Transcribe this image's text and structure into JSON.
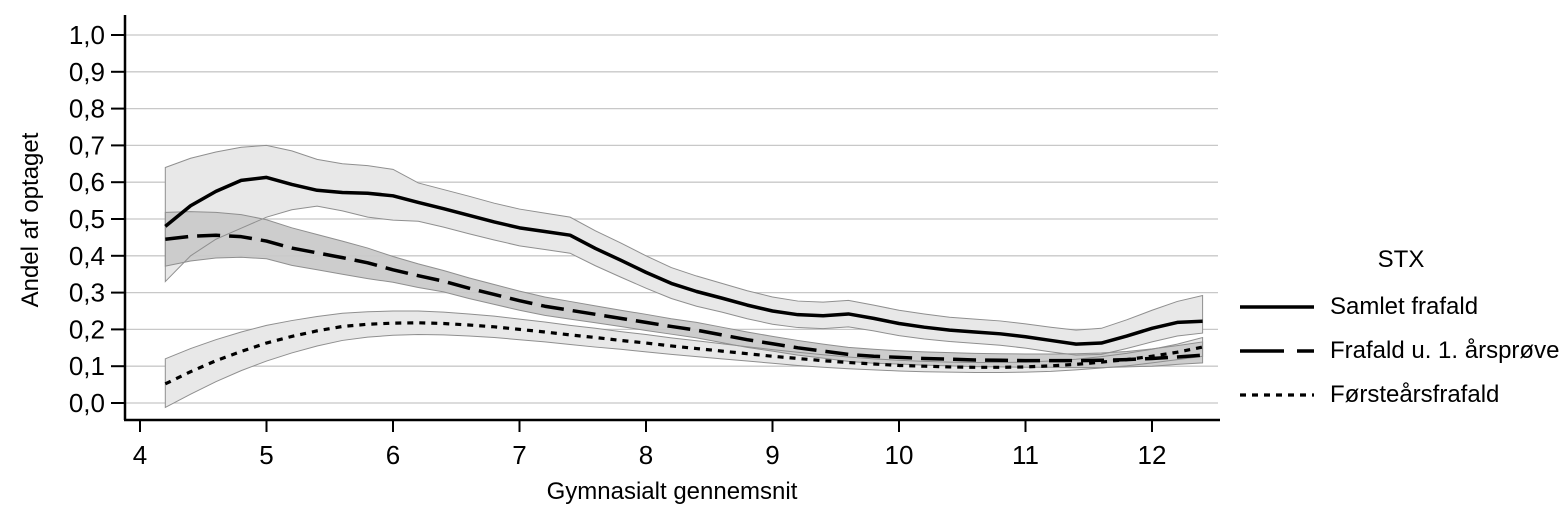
{
  "figure": {
    "background": "#ffffff",
    "text_color": "#000000"
  },
  "chart_data": {
    "type": "line",
    "title": "",
    "xlabel": "Gymnasialt gennemsnit",
    "ylabel": "Andel af optaget",
    "legend_title": "STX",
    "legend_position": "right",
    "grid": "horizontal",
    "grid_color": "#c8c8c8",
    "axis_color": "#000000",
    "xlim": [
      3.9,
      12.55
    ],
    "ylim": [
      -0.05,
      1.05
    ],
    "xticks": [
      4,
      5,
      6,
      7,
      8,
      9,
      10,
      11,
      12
    ],
    "ytick_values": [
      0.0,
      0.1,
      0.2,
      0.3,
      0.4,
      0.5,
      0.6,
      0.7,
      0.8,
      0.9,
      1.0
    ],
    "ytick_labels": [
      "0,0",
      "0,1",
      "0,2",
      "0,3",
      "0,4",
      "0,5",
      "0,6",
      "0,7",
      "0,8",
      "0,9",
      "1,0"
    ],
    "x": [
      4.2,
      4.4,
      4.6,
      4.8,
      5.0,
      5.2,
      5.4,
      5.6,
      5.8,
      6.0,
      6.2,
      6.4,
      6.6,
      6.8,
      7.0,
      7.2,
      7.4,
      7.6,
      7.8,
      8.0,
      8.2,
      8.4,
      8.6,
      8.8,
      9.0,
      9.2,
      9.4,
      9.6,
      9.8,
      10.0,
      10.2,
      10.4,
      10.6,
      10.8,
      11.0,
      11.2,
      11.4,
      11.6,
      11.8,
      12.0,
      12.2,
      12.4
    ],
    "series": [
      {
        "name": "Samlet frafald",
        "line_style": "solid",
        "color": "#000000",
        "band_fill": "#e8e8e8",
        "band_stroke": "#8f8f8f",
        "values": [
          0.48,
          0.536,
          0.575,
          0.605,
          0.613,
          0.594,
          0.578,
          0.572,
          0.57,
          0.563,
          0.545,
          0.528,
          0.51,
          0.492,
          0.476,
          0.466,
          0.456,
          0.42,
          0.388,
          0.355,
          0.325,
          0.303,
          0.285,
          0.266,
          0.25,
          0.24,
          0.237,
          0.242,
          0.23,
          0.216,
          0.206,
          0.198,
          0.193,
          0.188,
          0.18,
          0.17,
          0.16,
          0.163,
          0.182,
          0.203,
          0.219,
          0.222
        ],
        "ci_upper": [
          0.64,
          0.665,
          0.682,
          0.695,
          0.7,
          0.685,
          0.662,
          0.65,
          0.645,
          0.635,
          0.598,
          0.58,
          0.562,
          0.543,
          0.527,
          0.516,
          0.505,
          0.468,
          0.435,
          0.4,
          0.368,
          0.345,
          0.325,
          0.305,
          0.288,
          0.277,
          0.274,
          0.279,
          0.266,
          0.252,
          0.242,
          0.233,
          0.228,
          0.223,
          0.215,
          0.206,
          0.198,
          0.203,
          0.226,
          0.252,
          0.276,
          0.292
        ],
        "ci_lower": [
          0.33,
          0.4,
          0.445,
          0.475,
          0.505,
          0.525,
          0.535,
          0.522,
          0.505,
          0.497,
          0.494,
          0.478,
          0.46,
          0.443,
          0.427,
          0.417,
          0.407,
          0.373,
          0.342,
          0.312,
          0.284,
          0.263,
          0.247,
          0.229,
          0.214,
          0.205,
          0.202,
          0.207,
          0.196,
          0.183,
          0.174,
          0.167,
          0.162,
          0.157,
          0.149,
          0.139,
          0.13,
          0.132,
          0.148,
          0.166,
          0.182,
          0.19
        ]
      },
      {
        "name": "Frafald u. 1. årsprøve",
        "line_style": "long-dash",
        "color": "#000000",
        "band_fill": "#c9c9c9",
        "band_stroke": "#8f8f8f",
        "values": [
          0.445,
          0.453,
          0.456,
          0.452,
          0.44,
          0.421,
          0.408,
          0.395,
          0.381,
          0.362,
          0.346,
          0.331,
          0.312,
          0.295,
          0.278,
          0.263,
          0.252,
          0.241,
          0.23,
          0.219,
          0.208,
          0.198,
          0.185,
          0.172,
          0.161,
          0.15,
          0.141,
          0.132,
          0.127,
          0.124,
          0.121,
          0.119,
          0.117,
          0.116,
          0.115,
          0.115,
          0.115,
          0.116,
          0.118,
          0.121,
          0.125,
          0.13
        ],
        "ci_upper": [
          0.518,
          0.52,
          0.518,
          0.512,
          0.498,
          0.476,
          0.458,
          0.44,
          0.421,
          0.398,
          0.378,
          0.36,
          0.34,
          0.322,
          0.304,
          0.288,
          0.276,
          0.264,
          0.252,
          0.241,
          0.229,
          0.219,
          0.206,
          0.193,
          0.181,
          0.17,
          0.16,
          0.151,
          0.146,
          0.142,
          0.139,
          0.137,
          0.135,
          0.134,
          0.133,
          0.133,
          0.134,
          0.136,
          0.14,
          0.147,
          0.156,
          0.166
        ],
        "ci_lower": [
          0.372,
          0.386,
          0.394,
          0.396,
          0.392,
          0.374,
          0.362,
          0.35,
          0.338,
          0.328,
          0.314,
          0.302,
          0.284,
          0.268,
          0.252,
          0.238,
          0.228,
          0.218,
          0.208,
          0.197,
          0.187,
          0.177,
          0.164,
          0.151,
          0.141,
          0.13,
          0.122,
          0.113,
          0.108,
          0.106,
          0.103,
          0.101,
          0.099,
          0.098,
          0.097,
          0.097,
          0.096,
          0.096,
          0.098,
          0.1,
          0.105,
          0.109
        ]
      },
      {
        "name": "Førsteårsfrafald",
        "line_style": "short-dash",
        "color": "#000000",
        "band_fill": "#e8e8e8",
        "band_stroke": "#8f8f8f",
        "values": [
          0.052,
          0.085,
          0.115,
          0.14,
          0.163,
          0.181,
          0.196,
          0.208,
          0.214,
          0.217,
          0.218,
          0.216,
          0.212,
          0.207,
          0.2,
          0.193,
          0.185,
          0.178,
          0.17,
          0.163,
          0.155,
          0.148,
          0.141,
          0.134,
          0.127,
          0.121,
          0.115,
          0.11,
          0.106,
          0.102,
          0.1,
          0.098,
          0.097,
          0.097,
          0.098,
          0.101,
          0.105,
          0.111,
          0.118,
          0.127,
          0.138,
          0.152
        ],
        "ci_upper": [
          0.12,
          0.148,
          0.172,
          0.193,
          0.211,
          0.224,
          0.235,
          0.244,
          0.248,
          0.25,
          0.25,
          0.247,
          0.242,
          0.236,
          0.228,
          0.22,
          0.211,
          0.203,
          0.194,
          0.186,
          0.177,
          0.169,
          0.161,
          0.153,
          0.145,
          0.138,
          0.131,
          0.125,
          0.12,
          0.116,
          0.113,
          0.111,
          0.11,
          0.11,
          0.111,
          0.114,
          0.119,
          0.126,
          0.135,
          0.146,
          0.16,
          0.178
        ],
        "ci_lower": [
          -0.012,
          0.024,
          0.058,
          0.088,
          0.114,
          0.136,
          0.155,
          0.17,
          0.179,
          0.184,
          0.186,
          0.185,
          0.182,
          0.178,
          0.172,
          0.166,
          0.159,
          0.152,
          0.146,
          0.139,
          0.132,
          0.126,
          0.12,
          0.114,
          0.108,
          0.102,
          0.097,
          0.093,
          0.09,
          0.087,
          0.085,
          0.084,
          0.083,
          0.083,
          0.084,
          0.086,
          0.09,
          0.095,
          0.101,
          0.109,
          0.118,
          0.127
        ]
      }
    ]
  }
}
